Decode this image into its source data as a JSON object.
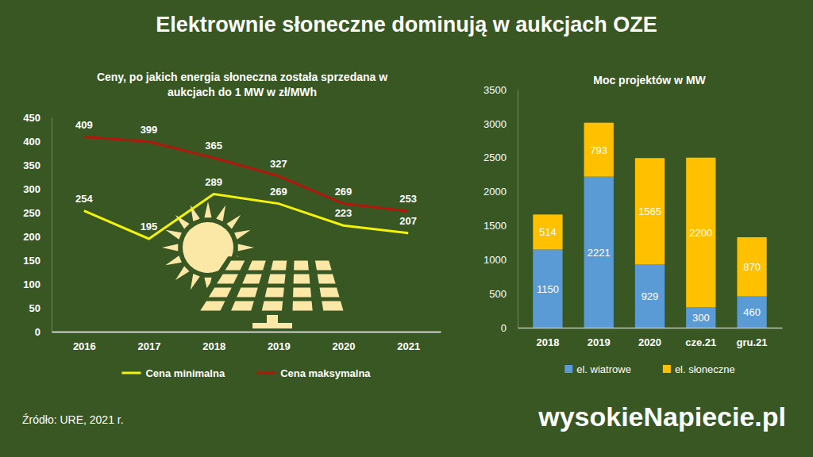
{
  "title": "Elektrownie słoneczne dominują w aukcjach OZE",
  "source": "Źródło: URE, 2021 r.",
  "logo": "wysokieNapiecie.pl",
  "chart_data": [
    {
      "type": "line",
      "title": "Ceny, po jakich energia słoneczna została sprzedana w aukcjach do 1 MW w zł/MWh",
      "categories": [
        "2016",
        "2017",
        "2018",
        "2019",
        "2020",
        "2021"
      ],
      "series": [
        {
          "name": "Cena minimalna",
          "color": "#f2f20c",
          "values": [
            254,
            195,
            289,
            269,
            223,
            207
          ]
        },
        {
          "name": "Cena maksymalna",
          "color": "#b3170c",
          "values": [
            409,
            399,
            365,
            327,
            269,
            253
          ]
        }
      ],
      "ylim": [
        0,
        450
      ],
      "yticks": [
        0,
        50,
        100,
        150,
        200,
        250,
        300,
        350,
        400,
        450
      ],
      "grid": false,
      "data_labels": true,
      "legend": "bottom"
    },
    {
      "type": "bar",
      "title": "Moc projektów w MW",
      "categories": [
        "2018",
        "2019",
        "2020",
        "cze.21",
        "gru.21"
      ],
      "series": [
        {
          "name": "el. wiatrowe",
          "color": "#5b9bd5",
          "values": [
            1150,
            2221,
            929,
            300,
            460
          ]
        },
        {
          "name": "el. słoneczne",
          "color": "#ffc000",
          "values": [
            514,
            793,
            1565,
            2200,
            870
          ]
        }
      ],
      "ylim": [
        0,
        3500
      ],
      "yticks": [
        0,
        500,
        1000,
        1500,
        2000,
        2500,
        3000,
        3500
      ],
      "stacked": true,
      "grid": false,
      "data_labels": true,
      "legend": "bottom"
    }
  ]
}
